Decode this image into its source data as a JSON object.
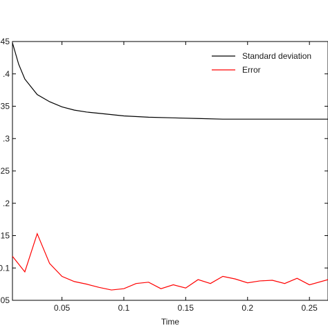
{
  "chart_data": {
    "type": "line",
    "xlabel": "Time",
    "ylabel": "",
    "xlim": [
      0.01,
      0.265
    ],
    "ylim": [
      0.05,
      0.45
    ],
    "xticks": [
      {
        "value": 0.05,
        "label": "0.05"
      },
      {
        "value": 0.1,
        "label": "0.1"
      },
      {
        "value": 0.15,
        "label": "0.15"
      },
      {
        "value": 0.2,
        "label": "0.2"
      },
      {
        "value": 0.25,
        "label": "0.25"
      }
    ],
    "yticks": [
      {
        "value": 0.45,
        "label": ".45"
      },
      {
        "value": 0.4,
        "label": ".4"
      },
      {
        "value": 0.35,
        "label": ".35"
      },
      {
        "value": 0.3,
        "label": ".3"
      },
      {
        "value": 0.25,
        "label": ".25"
      },
      {
        "value": 0.2,
        "label": ".2"
      },
      {
        "value": 0.15,
        "label": ".15"
      },
      {
        "value": 0.1,
        "label": "0.1"
      },
      {
        "value": 0.05,
        "label": ".05"
      }
    ],
    "grid": false,
    "legend_position": "top-right",
    "series": [
      {
        "name": "Standard deviation",
        "color": "#000000",
        "x": [
          0.01,
          0.015,
          0.02,
          0.03,
          0.04,
          0.05,
          0.06,
          0.07,
          0.08,
          0.09,
          0.1,
          0.12,
          0.14,
          0.16,
          0.18,
          0.2,
          0.22,
          0.24,
          0.265
        ],
        "y": [
          0.448,
          0.415,
          0.392,
          0.368,
          0.357,
          0.349,
          0.344,
          0.341,
          0.339,
          0.337,
          0.335,
          0.333,
          0.332,
          0.331,
          0.33,
          0.33,
          0.33,
          0.33,
          0.33
        ]
      },
      {
        "name": "Error",
        "color": "#ff0000",
        "x": [
          0.01,
          0.02,
          0.03,
          0.04,
          0.05,
          0.06,
          0.07,
          0.08,
          0.09,
          0.1,
          0.11,
          0.12,
          0.13,
          0.14,
          0.15,
          0.16,
          0.17,
          0.18,
          0.19,
          0.2,
          0.21,
          0.22,
          0.23,
          0.24,
          0.25,
          0.265
        ],
        "y": [
          0.118,
          0.094,
          0.153,
          0.107,
          0.087,
          0.079,
          0.075,
          0.07,
          0.066,
          0.068,
          0.076,
          0.078,
          0.068,
          0.074,
          0.069,
          0.082,
          0.076,
          0.087,
          0.083,
          0.077,
          0.08,
          0.081,
          0.076,
          0.084,
          0.074,
          0.082
        ]
      }
    ]
  }
}
